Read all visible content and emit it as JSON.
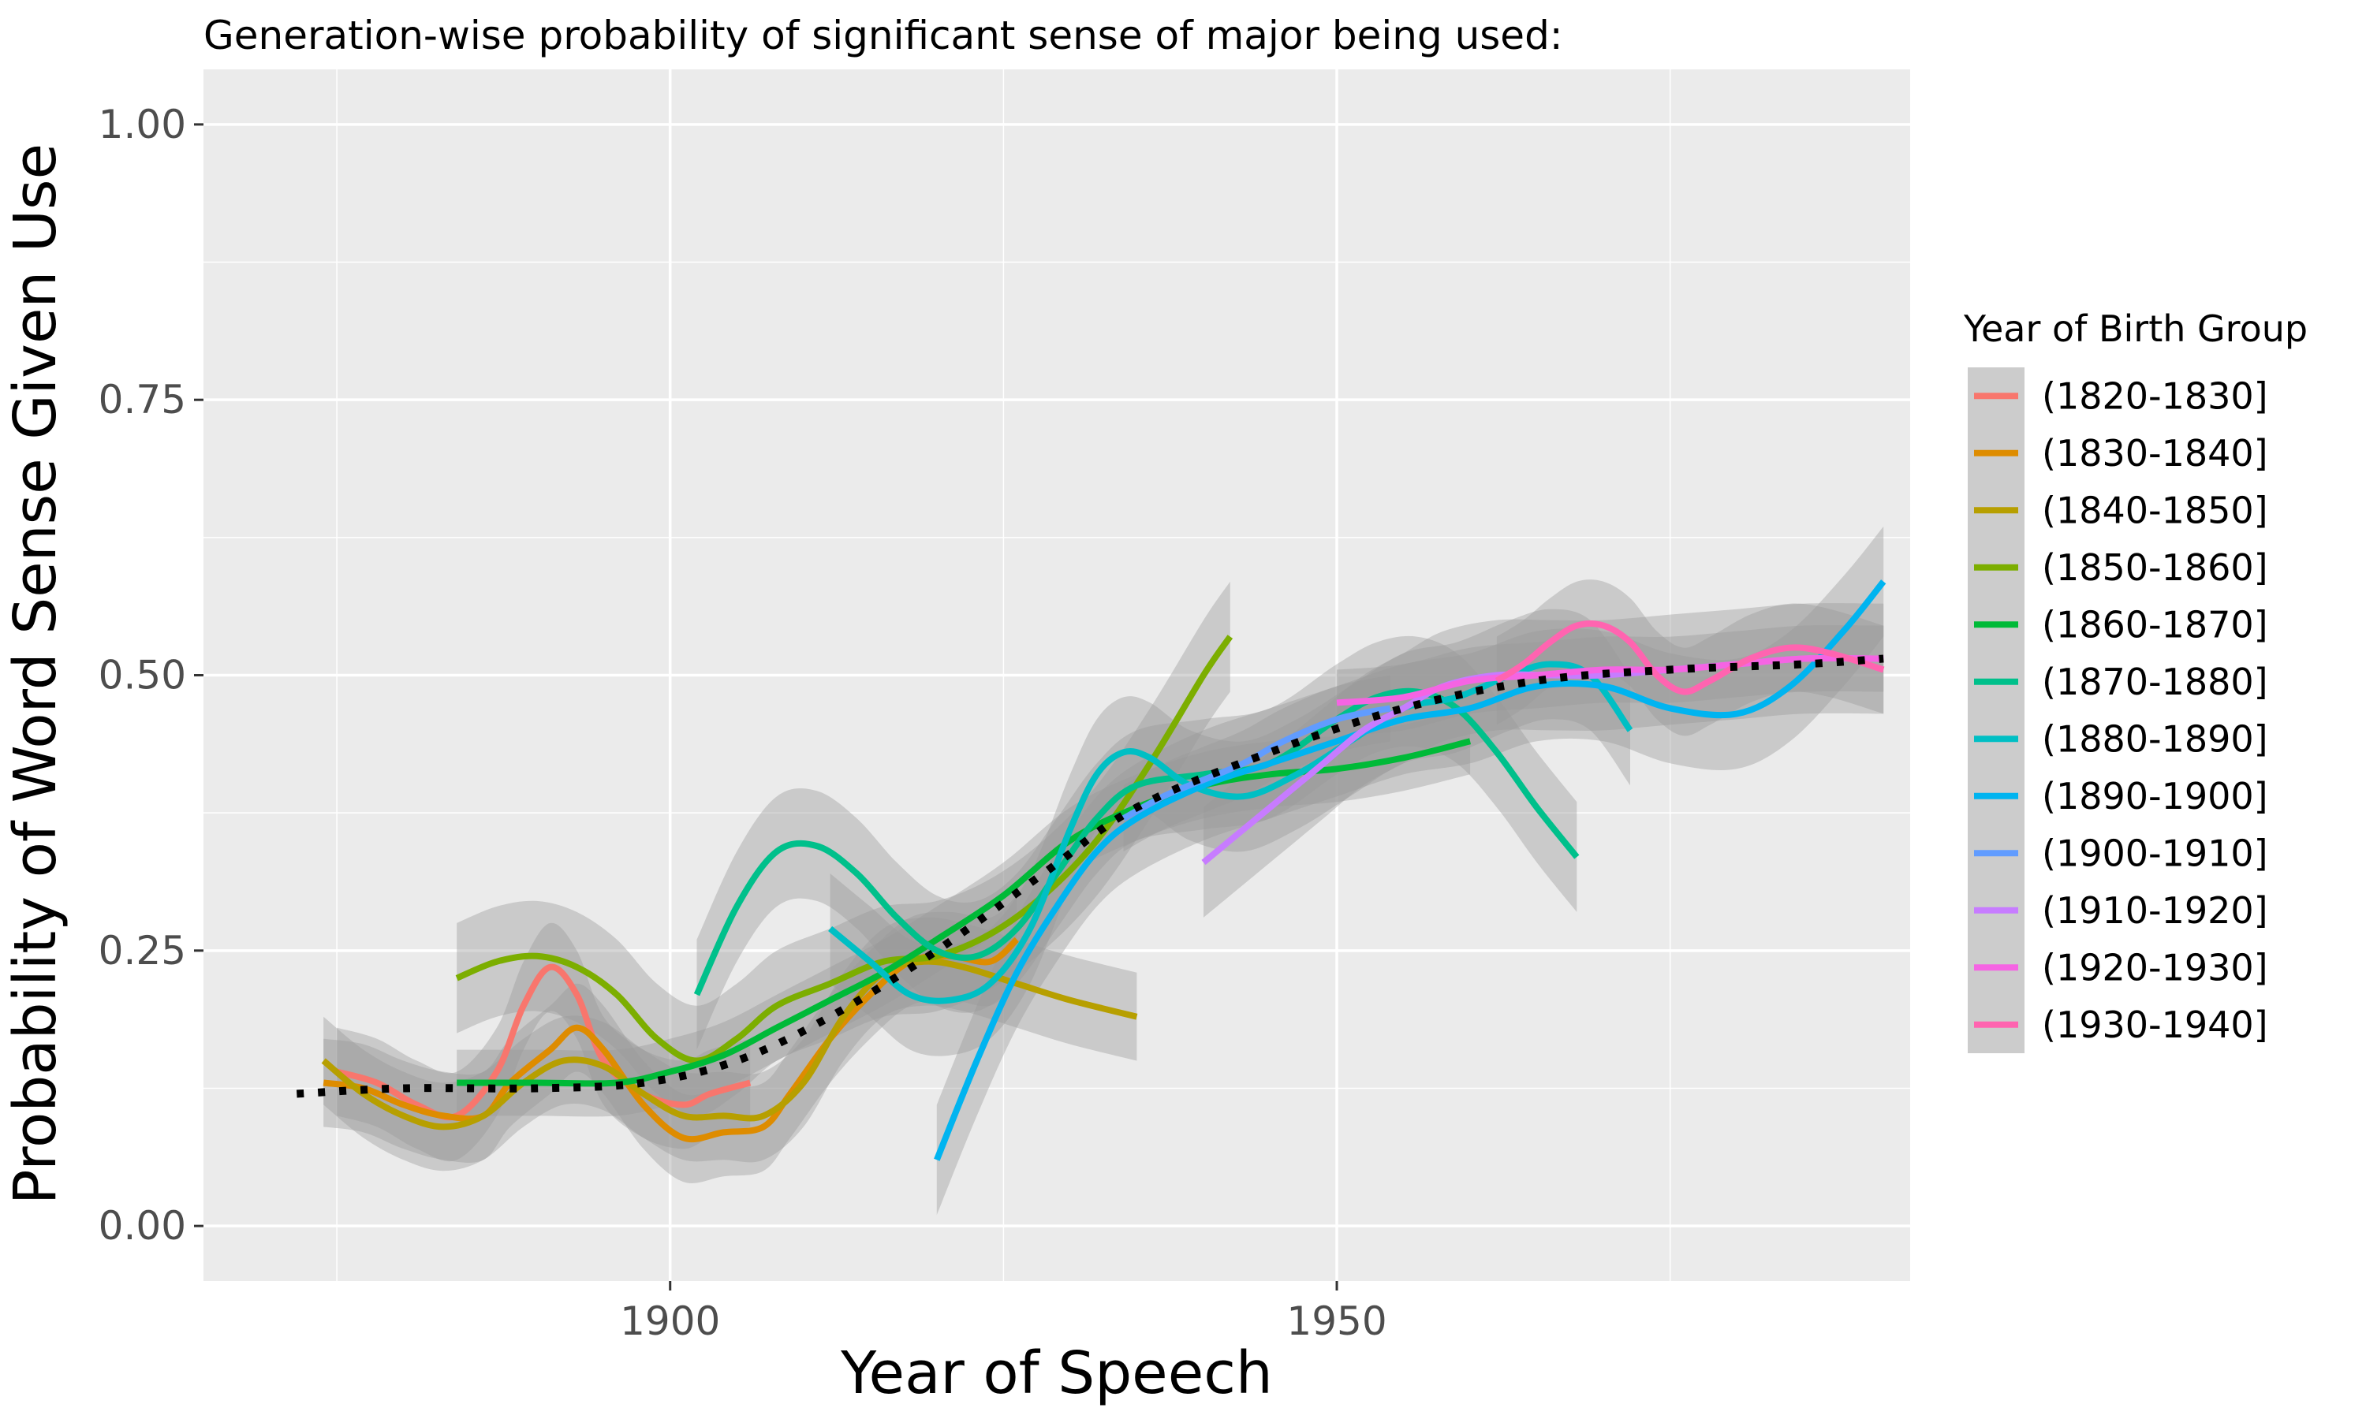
{
  "chart_data": {
    "type": "line",
    "title": "Generation-wise probability of significant sense of major being used:",
    "xlabel": "Year of Speech",
    "ylabel": "Probability of Word Sense Given Use",
    "xlim": [
      1865,
      1993
    ],
    "ylim": [
      -0.05,
      1.05
    ],
    "x_ticks": [
      1900,
      1950
    ],
    "x_tick_labels": [
      "1900",
      "1950"
    ],
    "y_ticks": [
      0,
      0.25,
      0.5,
      0.75,
      1
    ],
    "y_tick_labels": [
      "0.00",
      "0.25",
      "0.50",
      "0.75",
      "1.00"
    ],
    "grid": true,
    "legend": {
      "title": "Year of Birth Group",
      "position": "right"
    },
    "series": [
      {
        "name": "(1820-1830]",
        "color": "#F8766D",
        "band": 0.04,
        "points": [
          [
            1875,
            0.14
          ],
          [
            1878,
            0.13
          ],
          [
            1881,
            0.11
          ],
          [
            1884,
            0.1
          ],
          [
            1887,
            0.14
          ],
          [
            1889,
            0.2
          ],
          [
            1891,
            0.235
          ],
          [
            1893,
            0.21
          ],
          [
            1895,
            0.15
          ],
          [
            1898,
            0.12
          ],
          [
            1901,
            0.11
          ],
          [
            1903,
            0.12
          ],
          [
            1906,
            0.13
          ]
        ]
      },
      {
        "name": "(1830-1840]",
        "color": "#DE8C00",
        "band": 0.04,
        "points": [
          [
            1874,
            0.13
          ],
          [
            1877,
            0.125
          ],
          [
            1880,
            0.11
          ],
          [
            1883,
            0.1
          ],
          [
            1886,
            0.1
          ],
          [
            1888,
            0.13
          ],
          [
            1891,
            0.16
          ],
          [
            1893,
            0.18
          ],
          [
            1895,
            0.16
          ],
          [
            1898,
            0.11
          ],
          [
            1901,
            0.08
          ],
          [
            1904,
            0.085
          ],
          [
            1907,
            0.09
          ],
          [
            1909,
            0.12
          ],
          [
            1912,
            0.17
          ],
          [
            1915,
            0.21
          ],
          [
            1918,
            0.24
          ],
          [
            1921,
            0.245
          ],
          [
            1924,
            0.24
          ],
          [
            1926,
            0.26
          ]
        ]
      },
      {
        "name": "(1840-1850]",
        "color": "#B79F00",
        "band": 0.04,
        "points": [
          [
            1874,
            0.15
          ],
          [
            1877,
            0.12
          ],
          [
            1880,
            0.1
          ],
          [
            1883,
            0.09
          ],
          [
            1886,
            0.1
          ],
          [
            1889,
            0.13
          ],
          [
            1892,
            0.15
          ],
          [
            1895,
            0.145
          ],
          [
            1898,
            0.12
          ],
          [
            1901,
            0.1
          ],
          [
            1904,
            0.1
          ],
          [
            1907,
            0.1
          ],
          [
            1910,
            0.13
          ],
          [
            1913,
            0.19
          ],
          [
            1916,
            0.23
          ],
          [
            1919,
            0.24
          ],
          [
            1922,
            0.235
          ],
          [
            1926,
            0.22
          ],
          [
            1930,
            0.205
          ],
          [
            1935,
            0.19
          ]
        ]
      },
      {
        "name": "(1850-1860]",
        "color": "#7CAE00",
        "band": 0.05,
        "points": [
          [
            1884,
            0.225
          ],
          [
            1887,
            0.24
          ],
          [
            1890,
            0.245
          ],
          [
            1893,
            0.235
          ],
          [
            1896,
            0.21
          ],
          [
            1899,
            0.17
          ],
          [
            1902,
            0.15
          ],
          [
            1905,
            0.17
          ],
          [
            1908,
            0.2
          ],
          [
            1912,
            0.22
          ],
          [
            1916,
            0.24
          ],
          [
            1920,
            0.245
          ],
          [
            1924,
            0.265
          ],
          [
            1928,
            0.3
          ],
          [
            1932,
            0.35
          ],
          [
            1936,
            0.42
          ],
          [
            1940,
            0.5
          ],
          [
            1942,
            0.535
          ]
        ]
      },
      {
        "name": "(1860-1870]",
        "color": "#00BA38",
        "band": 0.03,
        "points": [
          [
            1884,
            0.13
          ],
          [
            1890,
            0.13
          ],
          [
            1896,
            0.13
          ],
          [
            1900,
            0.14
          ],
          [
            1904,
            0.155
          ],
          [
            1908,
            0.18
          ],
          [
            1912,
            0.205
          ],
          [
            1916,
            0.23
          ],
          [
            1920,
            0.26
          ],
          [
            1925,
            0.3
          ],
          [
            1930,
            0.35
          ],
          [
            1935,
            0.38
          ],
          [
            1940,
            0.4
          ],
          [
            1945,
            0.41
          ],
          [
            1950,
            0.415
          ],
          [
            1955,
            0.425
          ],
          [
            1960,
            0.44
          ]
        ]
      },
      {
        "name": "(1870-1880]",
        "color": "#00C08B",
        "band": 0.05,
        "points": [
          [
            1902,
            0.21
          ],
          [
            1905,
            0.29
          ],
          [
            1908,
            0.34
          ],
          [
            1911,
            0.345
          ],
          [
            1914,
            0.32
          ],
          [
            1917,
            0.28
          ],
          [
            1920,
            0.25
          ],
          [
            1923,
            0.245
          ],
          [
            1926,
            0.27
          ],
          [
            1929,
            0.32
          ],
          [
            1932,
            0.37
          ],
          [
            1935,
            0.4
          ],
          [
            1940,
            0.41
          ],
          [
            1945,
            0.42
          ],
          [
            1950,
            0.46
          ],
          [
            1953,
            0.48
          ],
          [
            1956,
            0.485
          ],
          [
            1959,
            0.47
          ],
          [
            1962,
            0.43
          ],
          [
            1965,
            0.38
          ],
          [
            1968,
            0.335
          ]
        ]
      },
      {
        "name": "(1880-1890]",
        "color": "#00BFC4",
        "band": 0.05,
        "points": [
          [
            1912,
            0.27
          ],
          [
            1915,
            0.24
          ],
          [
            1918,
            0.21
          ],
          [
            1921,
            0.205
          ],
          [
            1924,
            0.22
          ],
          [
            1927,
            0.27
          ],
          [
            1930,
            0.36
          ],
          [
            1932,
            0.41
          ],
          [
            1934,
            0.43
          ],
          [
            1936,
            0.425
          ],
          [
            1939,
            0.4
          ],
          [
            1943,
            0.39
          ],
          [
            1947,
            0.41
          ],
          [
            1951,
            0.44
          ],
          [
            1955,
            0.47
          ],
          [
            1959,
            0.48
          ],
          [
            1963,
            0.5
          ],
          [
            1966,
            0.51
          ],
          [
            1969,
            0.5
          ],
          [
            1972,
            0.45
          ]
        ]
      },
      {
        "name": "(1890-1900]",
        "color": "#00B4F0",
        "band": 0.05,
        "points": [
          [
            1920,
            0.06
          ],
          [
            1923,
            0.15
          ],
          [
            1926,
            0.23
          ],
          [
            1929,
            0.29
          ],
          [
            1932,
            0.34
          ],
          [
            1935,
            0.37
          ],
          [
            1940,
            0.4
          ],
          [
            1945,
            0.42
          ],
          [
            1950,
            0.44
          ],
          [
            1955,
            0.46
          ],
          [
            1960,
            0.47
          ],
          [
            1965,
            0.49
          ],
          [
            1970,
            0.49
          ],
          [
            1975,
            0.47
          ],
          [
            1980,
            0.465
          ],
          [
            1984,
            0.49
          ],
          [
            1988,
            0.54
          ],
          [
            1991,
            0.585
          ]
        ]
      },
      {
        "name": "(1900-1910]",
        "color": "#619CFF",
        "band": 0.03,
        "points": [
          [
            1934,
            0.37
          ],
          [
            1937,
            0.39
          ],
          [
            1940,
            0.405
          ],
          [
            1943,
            0.42
          ],
          [
            1946,
            0.44
          ],
          [
            1950,
            0.46
          ],
          [
            1954,
            0.47
          ]
        ]
      },
      {
        "name": "(1910-1920]",
        "color": "#C77CFF",
        "band": 0.05,
        "points": [
          [
            1940,
            0.33
          ],
          [
            1943,
            0.36
          ],
          [
            1946,
            0.39
          ],
          [
            1949,
            0.42
          ],
          [
            1952,
            0.45
          ],
          [
            1955,
            0.47
          ],
          [
            1958,
            0.49
          ],
          [
            1962,
            0.5
          ],
          [
            1966,
            0.5
          ],
          [
            1970,
            0.5
          ],
          [
            1975,
            0.505
          ],
          [
            1980,
            0.51
          ],
          [
            1985,
            0.515
          ],
          [
            1991,
            0.515
          ]
        ]
      },
      {
        "name": "(1920-1930]",
        "color": "#F564E3",
        "band": 0.03,
        "points": [
          [
            1950,
            0.475
          ],
          [
            1955,
            0.48
          ],
          [
            1960,
            0.495
          ],
          [
            1965,
            0.5
          ],
          [
            1970,
            0.505
          ],
          [
            1975,
            0.505
          ],
          [
            1980,
            0.51
          ],
          [
            1985,
            0.515
          ],
          [
            1991,
            0.515
          ]
        ]
      },
      {
        "name": "(1930-1940]",
        "color": "#FF64B0",
        "band": 0.04,
        "points": [
          [
            1962,
            0.495
          ],
          [
            1964,
            0.51
          ],
          [
            1966,
            0.53
          ],
          [
            1968,
            0.545
          ],
          [
            1970,
            0.545
          ],
          [
            1972,
            0.53
          ],
          [
            1974,
            0.5
          ],
          [
            1976,
            0.485
          ],
          [
            1978,
            0.495
          ],
          [
            1981,
            0.515
          ],
          [
            1984,
            0.525
          ],
          [
            1987,
            0.52
          ],
          [
            1991,
            0.505
          ]
        ]
      }
    ],
    "overall_trend": {
      "style": "dotted",
      "color": "#000000",
      "points": [
        [
          1872,
          0.12
        ],
        [
          1880,
          0.125
        ],
        [
          1890,
          0.125
        ],
        [
          1898,
          0.13
        ],
        [
          1905,
          0.15
        ],
        [
          1912,
          0.19
        ],
        [
          1920,
          0.25
        ],
        [
          1928,
          0.32
        ],
        [
          1935,
          0.38
        ],
        [
          1945,
          0.43
        ],
        [
          1955,
          0.47
        ],
        [
          1965,
          0.495
        ],
        [
          1975,
          0.505
        ],
        [
          1985,
          0.51
        ],
        [
          1991,
          0.515
        ]
      ]
    }
  }
}
